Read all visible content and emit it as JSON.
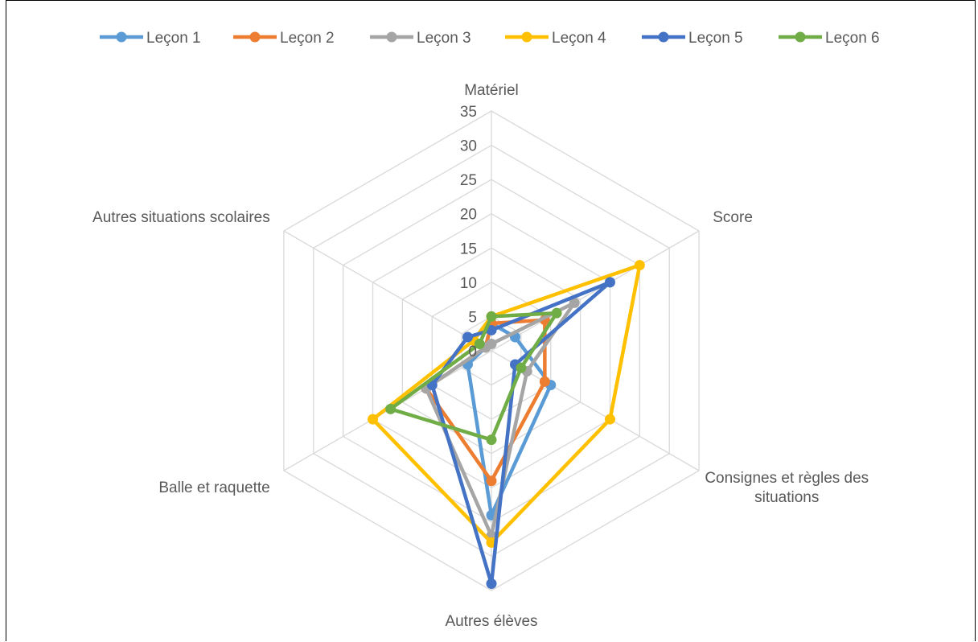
{
  "chart_data": {
    "type": "radar",
    "axes": [
      "Matériel",
      "Score",
      "Consignes et règles des situations",
      "Autres élèves",
      "Balle et raquette",
      "Autres situations scolaires"
    ],
    "axis_label_lines": [
      [
        "Matériel"
      ],
      [
        "Score"
      ],
      [
        "Consignes et règles des",
        "situations"
      ],
      [
        "Autres élèves"
      ],
      [
        "Balle et raquette"
      ],
      [
        "Autres situations scolaires"
      ]
    ],
    "rlim": [
      0,
      35
    ],
    "ticks": [
      0,
      5,
      10,
      15,
      20,
      25,
      30,
      35
    ],
    "tick_labels": [
      "0",
      "5",
      "10",
      "15",
      "20",
      "25",
      "30",
      "35"
    ],
    "grid": true,
    "legend_position": "top",
    "series": [
      {
        "name": "Leçon 1",
        "color": "#5B9BD5",
        "values": [
          4,
          4,
          10,
          24,
          4,
          1
        ]
      },
      {
        "name": "Leçon 2",
        "color": "#ED7D31",
        "values": [
          4,
          9,
          9,
          19,
          11,
          1
        ]
      },
      {
        "name": "Leçon 3",
        "color": "#A5A5A5",
        "values": [
          1,
          14,
          6,
          27,
          11,
          1
        ]
      },
      {
        "name": "Leçon 4",
        "color": "#FFC000",
        "values": [
          5,
          25,
          20,
          28,
          20,
          3
        ]
      },
      {
        "name": "Leçon 5",
        "color": "#4472C4",
        "values": [
          3,
          20,
          4,
          34,
          10,
          4
        ]
      },
      {
        "name": "Leçon 6",
        "color": "#70AD47",
        "values": [
          5,
          11,
          5,
          13,
          17,
          2
        ]
      }
    ]
  }
}
